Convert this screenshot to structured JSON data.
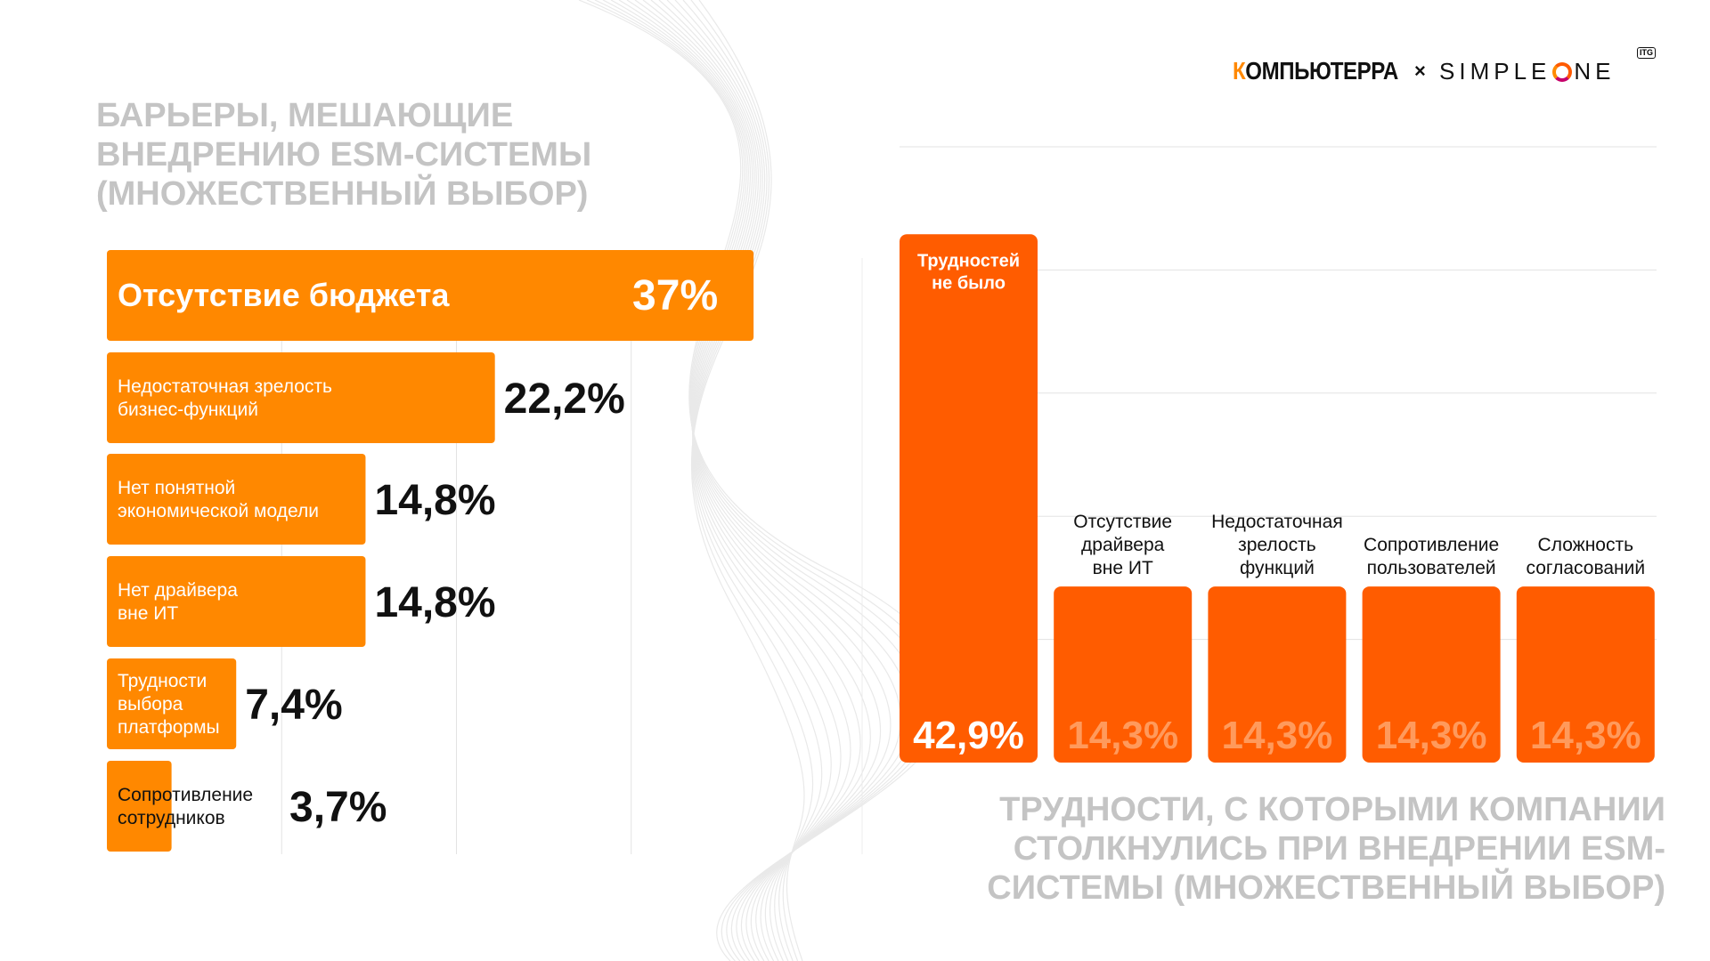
{
  "logos": {
    "kompyuterra_first": "К",
    "kompyuterra_rest": "ОМПЬЮТЕРРА",
    "separator": "×",
    "simpleone_pre": "SIMPLE",
    "simpleone_post": "NE",
    "itg_badge": "ITG"
  },
  "colors": {
    "bar_light_orange": "#ff8800",
    "bar_dark_orange": "#ff5c00",
    "title_gray": "#c4c4c4"
  },
  "chart_data": [
    {
      "type": "bar",
      "orientation": "horizontal",
      "title": "БАРЬЕРЫ, МЕШАЮЩИЕ ВНЕДРЕНИЮ ESM-СИСТЕМЫ (МНОЖЕСТВЕННЫЙ ВЫБОР)",
      "categories": [
        "Отсутствие бюджета",
        "Недостаточная зрелость\nбизнес-функций",
        "Нет понятной\nэкономической модели",
        "Нет драйвера\nвне ИТ",
        "Трудности\nвыбора\nплатформы",
        "Сопротивление\nсотрудников"
      ],
      "values": [
        37,
        22.2,
        14.8,
        14.8,
        7.4,
        3.7
      ],
      "value_labels": [
        "37%",
        "22,2%",
        "14,8%",
        "14,8%",
        "7,4%",
        "3,7%"
      ],
      "xlim": [
        0,
        40
      ],
      "grid": true
    },
    {
      "type": "bar",
      "orientation": "vertical",
      "title": "ТРУДНОСТИ, С КОТОРЫМИ КОМПАНИИ СТОЛКНУЛИСЬ ПРИ ВНЕДРЕНИИ ESM-СИСТЕМЫ (МНОЖЕСТВЕННЫЙ ВЫБОР)",
      "categories": [
        "Трудностей\nне было",
        "Отсутствие\nдрайвера\nвне ИТ",
        "Недостаточная\nзрелость\nфункций",
        "Сопротивление\nпользователей",
        "Сложность\nсогласований"
      ],
      "values": [
        42.9,
        14.3,
        14.3,
        14.3,
        14.3
      ],
      "value_labels": [
        "42,9%",
        "14,3%",
        "14,3%",
        "14,3%",
        "14,3%"
      ],
      "ylim": [
        0,
        50
      ],
      "grid": true
    }
  ]
}
